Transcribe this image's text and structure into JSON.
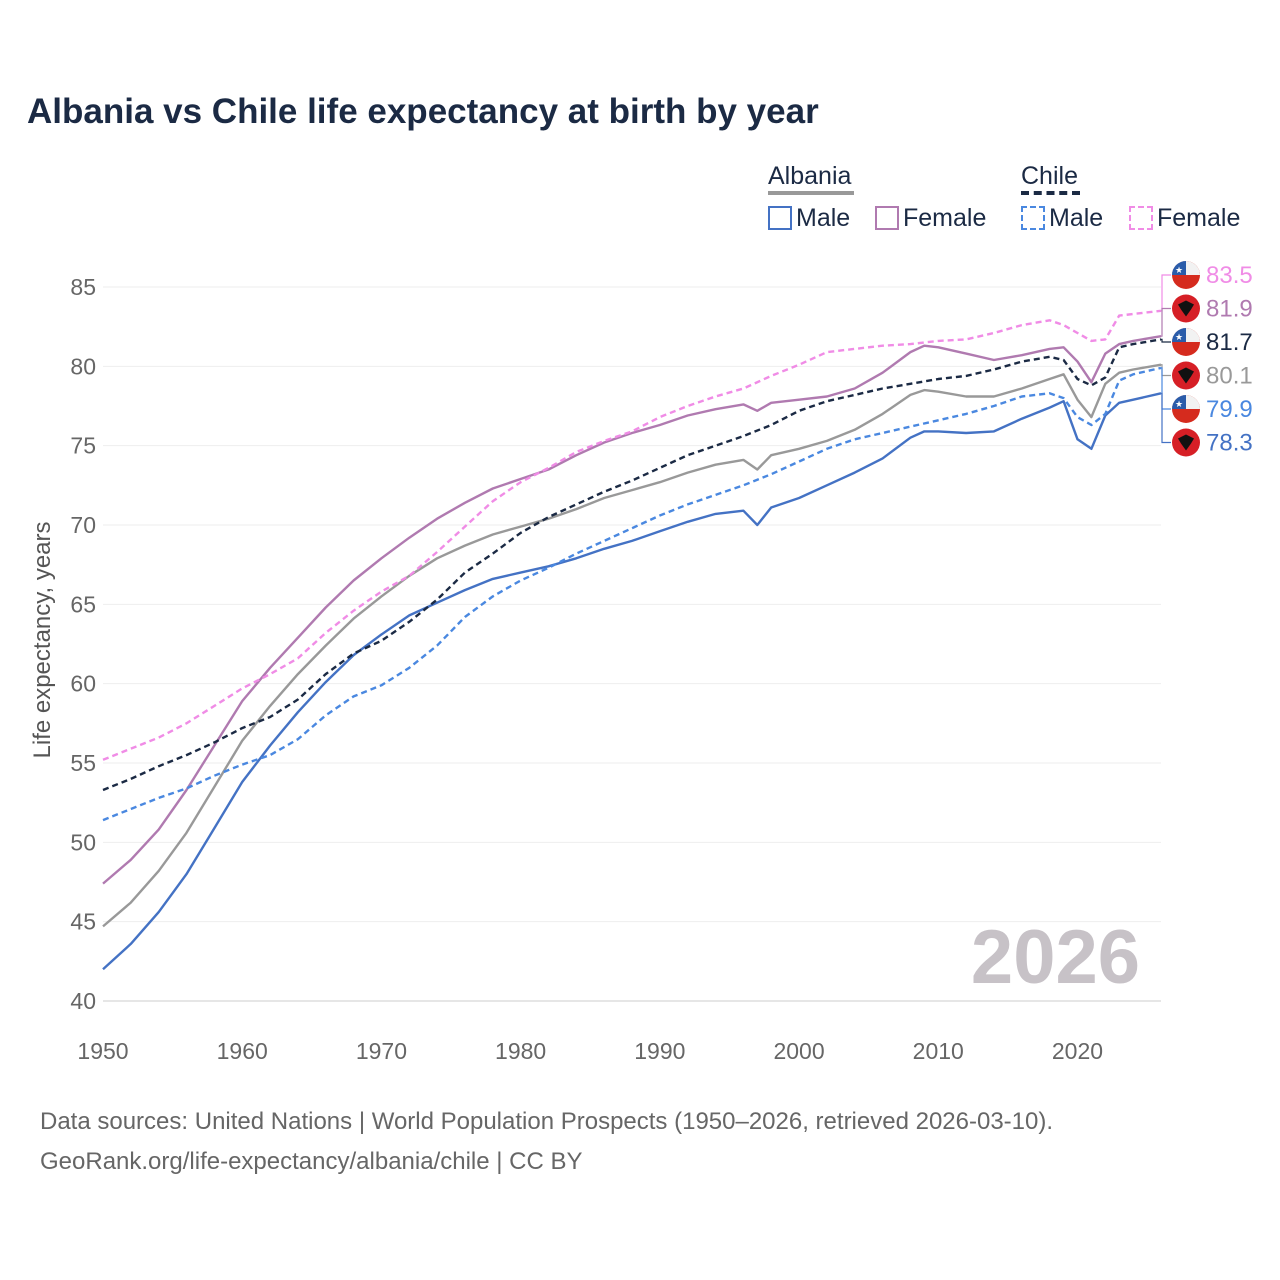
{
  "chart_data": {
    "type": "line",
    "title": "Albania vs Chile life expectancy at birth by year",
    "ylabel": "Life expectancy, years",
    "xlabel": "",
    "xlim": [
      1950,
      2026
    ],
    "ylim": [
      40,
      86
    ],
    "x_ticks": [
      "1950",
      "1960",
      "1970",
      "1980",
      "1990",
      "2000",
      "2010",
      "2020"
    ],
    "y_ticks": [
      "40",
      "45",
      "50",
      "55",
      "60",
      "65",
      "70",
      "75",
      "80",
      "85"
    ],
    "year_watermark": "2026",
    "legend": {
      "groups": [
        {
          "name": "Albania",
          "items": [
            "Male",
            "Female"
          ]
        },
        {
          "name": "Chile",
          "items": [
            "Male",
            "Female"
          ]
        }
      ]
    },
    "series": [
      {
        "name": "Albania Female",
        "country": "Albania",
        "sex": "Female",
        "color": "#b07ab0",
        "dashed": false,
        "end_label": "81.9",
        "points": [
          [
            1950,
            47.4
          ],
          [
            1952,
            48.9
          ],
          [
            1954,
            50.8
          ],
          [
            1956,
            53.3
          ],
          [
            1958,
            56.1
          ],
          [
            1960,
            58.9
          ],
          [
            1962,
            61.0
          ],
          [
            1964,
            62.9
          ],
          [
            1966,
            64.8
          ],
          [
            1968,
            66.5
          ],
          [
            1970,
            67.9
          ],
          [
            1972,
            69.2
          ],
          [
            1974,
            70.4
          ],
          [
            1976,
            71.4
          ],
          [
            1978,
            72.3
          ],
          [
            1980,
            72.9
          ],
          [
            1982,
            73.5
          ],
          [
            1984,
            74.4
          ],
          [
            1986,
            75.2
          ],
          [
            1988,
            75.8
          ],
          [
            1990,
            76.3
          ],
          [
            1992,
            76.9
          ],
          [
            1994,
            77.3
          ],
          [
            1996,
            77.6
          ],
          [
            1997,
            77.2
          ],
          [
            1998,
            77.7
          ],
          [
            2000,
            77.9
          ],
          [
            2002,
            78.1
          ],
          [
            2004,
            78.6
          ],
          [
            2006,
            79.6
          ],
          [
            2008,
            80.9
          ],
          [
            2009,
            81.3
          ],
          [
            2010,
            81.2
          ],
          [
            2012,
            80.8
          ],
          [
            2014,
            80.4
          ],
          [
            2016,
            80.7
          ],
          [
            2018,
            81.1
          ],
          [
            2019,
            81.2
          ],
          [
            2020,
            80.3
          ],
          [
            2021,
            79.0
          ],
          [
            2022,
            80.8
          ],
          [
            2023,
            81.4
          ],
          [
            2024,
            81.6
          ],
          [
            2026,
            81.9
          ]
        ]
      },
      {
        "name": "Albania Total",
        "country": "Albania",
        "sex": "Total",
        "color": "#999999",
        "dashed": false,
        "end_label": "80.1",
        "points": [
          [
            1950,
            44.7
          ],
          [
            1952,
            46.2
          ],
          [
            1954,
            48.2
          ],
          [
            1956,
            50.6
          ],
          [
            1958,
            53.5
          ],
          [
            1960,
            56.4
          ],
          [
            1962,
            58.6
          ],
          [
            1964,
            60.6
          ],
          [
            1966,
            62.4
          ],
          [
            1968,
            64.1
          ],
          [
            1970,
            65.5
          ],
          [
            1972,
            66.8
          ],
          [
            1974,
            67.9
          ],
          [
            1976,
            68.7
          ],
          [
            1978,
            69.4
          ],
          [
            1980,
            69.9
          ],
          [
            1982,
            70.4
          ],
          [
            1984,
            71.0
          ],
          [
            1986,
            71.7
          ],
          [
            1988,
            72.2
          ],
          [
            1990,
            72.7
          ],
          [
            1992,
            73.3
          ],
          [
            1994,
            73.8
          ],
          [
            1996,
            74.1
          ],
          [
            1997,
            73.5
          ],
          [
            1998,
            74.4
          ],
          [
            2000,
            74.8
          ],
          [
            2002,
            75.3
          ],
          [
            2004,
            76.0
          ],
          [
            2006,
            77.0
          ],
          [
            2008,
            78.2
          ],
          [
            2009,
            78.5
          ],
          [
            2010,
            78.4
          ],
          [
            2012,
            78.1
          ],
          [
            2014,
            78.1
          ],
          [
            2016,
            78.6
          ],
          [
            2018,
            79.2
          ],
          [
            2019,
            79.5
          ],
          [
            2020,
            77.9
          ],
          [
            2021,
            76.8
          ],
          [
            2022,
            78.9
          ],
          [
            2023,
            79.6
          ],
          [
            2024,
            79.8
          ],
          [
            2026,
            80.1
          ]
        ]
      },
      {
        "name": "Albania Male",
        "country": "Albania",
        "sex": "Male",
        "color": "#4472c4",
        "dashed": false,
        "end_label": "78.3",
        "points": [
          [
            1950,
            42.0
          ],
          [
            1952,
            43.6
          ],
          [
            1954,
            45.6
          ],
          [
            1956,
            48.0
          ],
          [
            1958,
            50.9
          ],
          [
            1960,
            53.8
          ],
          [
            1962,
            56.1
          ],
          [
            1964,
            58.2
          ],
          [
            1966,
            60.1
          ],
          [
            1968,
            61.8
          ],
          [
            1970,
            63.1
          ],
          [
            1972,
            64.3
          ],
          [
            1974,
            65.1
          ],
          [
            1976,
            65.9
          ],
          [
            1978,
            66.6
          ],
          [
            1980,
            67.0
          ],
          [
            1982,
            67.4
          ],
          [
            1984,
            67.9
          ],
          [
            1986,
            68.5
          ],
          [
            1988,
            69.0
          ],
          [
            1990,
            69.6
          ],
          [
            1992,
            70.2
          ],
          [
            1994,
            70.7
          ],
          [
            1996,
            70.9
          ],
          [
            1997,
            70.0
          ],
          [
            1998,
            71.1
          ],
          [
            2000,
            71.7
          ],
          [
            2002,
            72.5
          ],
          [
            2004,
            73.3
          ],
          [
            2006,
            74.2
          ],
          [
            2008,
            75.5
          ],
          [
            2009,
            75.9
          ],
          [
            2010,
            75.9
          ],
          [
            2012,
            75.8
          ],
          [
            2014,
            75.9
          ],
          [
            2016,
            76.7
          ],
          [
            2018,
            77.4
          ],
          [
            2019,
            77.8
          ],
          [
            2020,
            75.4
          ],
          [
            2021,
            74.8
          ],
          [
            2022,
            76.9
          ],
          [
            2023,
            77.7
          ],
          [
            2024,
            77.9
          ],
          [
            2026,
            78.3
          ]
        ]
      },
      {
        "name": "Chile Female",
        "country": "Chile",
        "sex": "Female",
        "color": "#f08ce6",
        "dashed": true,
        "end_label": "83.5",
        "points": [
          [
            1950,
            55.2
          ],
          [
            1952,
            55.9
          ],
          [
            1954,
            56.6
          ],
          [
            1956,
            57.5
          ],
          [
            1958,
            58.6
          ],
          [
            1960,
            59.7
          ],
          [
            1962,
            60.6
          ],
          [
            1964,
            61.6
          ],
          [
            1966,
            63.2
          ],
          [
            1968,
            64.6
          ],
          [
            1970,
            65.8
          ],
          [
            1972,
            66.8
          ],
          [
            1974,
            68.3
          ],
          [
            1976,
            69.9
          ],
          [
            1978,
            71.5
          ],
          [
            1980,
            72.7
          ],
          [
            1982,
            73.6
          ],
          [
            1984,
            74.6
          ],
          [
            1986,
            75.3
          ],
          [
            1988,
            75.9
          ],
          [
            1990,
            76.8
          ],
          [
            1992,
            77.5
          ],
          [
            1994,
            78.1
          ],
          [
            1996,
            78.6
          ],
          [
            1998,
            79.4
          ],
          [
            2000,
            80.1
          ],
          [
            2002,
            80.9
          ],
          [
            2004,
            81.1
          ],
          [
            2006,
            81.3
          ],
          [
            2008,
            81.4
          ],
          [
            2010,
            81.6
          ],
          [
            2012,
            81.7
          ],
          [
            2014,
            82.1
          ],
          [
            2016,
            82.6
          ],
          [
            2018,
            82.9
          ],
          [
            2019,
            82.6
          ],
          [
            2020,
            82.1
          ],
          [
            2021,
            81.6
          ],
          [
            2022,
            81.7
          ],
          [
            2023,
            83.2
          ],
          [
            2024,
            83.3
          ],
          [
            2026,
            83.5
          ]
        ]
      },
      {
        "name": "Chile Total",
        "country": "Chile",
        "sex": "Total",
        "color": "#1b2a44",
        "dashed": true,
        "end_label": "81.7",
        "points": [
          [
            1950,
            53.3
          ],
          [
            1952,
            54.0
          ],
          [
            1954,
            54.8
          ],
          [
            1956,
            55.5
          ],
          [
            1958,
            56.3
          ],
          [
            1960,
            57.2
          ],
          [
            1962,
            57.9
          ],
          [
            1964,
            59.0
          ],
          [
            1966,
            60.6
          ],
          [
            1968,
            61.9
          ],
          [
            1970,
            62.7
          ],
          [
            1972,
            63.9
          ],
          [
            1974,
            65.3
          ],
          [
            1976,
            67.0
          ],
          [
            1978,
            68.2
          ],
          [
            1980,
            69.5
          ],
          [
            1982,
            70.5
          ],
          [
            1984,
            71.3
          ],
          [
            1986,
            72.1
          ],
          [
            1988,
            72.8
          ],
          [
            1990,
            73.6
          ],
          [
            1992,
            74.4
          ],
          [
            1994,
            75.0
          ],
          [
            1996,
            75.6
          ],
          [
            1998,
            76.3
          ],
          [
            2000,
            77.2
          ],
          [
            2002,
            77.8
          ],
          [
            2004,
            78.2
          ],
          [
            2006,
            78.6
          ],
          [
            2008,
            78.9
          ],
          [
            2010,
            79.2
          ],
          [
            2012,
            79.4
          ],
          [
            2014,
            79.8
          ],
          [
            2016,
            80.3
          ],
          [
            2018,
            80.6
          ],
          [
            2019,
            80.4
          ],
          [
            2020,
            79.2
          ],
          [
            2021,
            78.8
          ],
          [
            2022,
            79.3
          ],
          [
            2023,
            81.2
          ],
          [
            2024,
            81.4
          ],
          [
            2026,
            81.7
          ]
        ]
      },
      {
        "name": "Chile Male",
        "country": "Chile",
        "sex": "Male",
        "color": "#4a88e0",
        "dashed": true,
        "end_label": "79.9",
        "points": [
          [
            1950,
            51.4
          ],
          [
            1952,
            52.1
          ],
          [
            1954,
            52.8
          ],
          [
            1956,
            53.4
          ],
          [
            1958,
            54.2
          ],
          [
            1960,
            54.9
          ],
          [
            1962,
            55.5
          ],
          [
            1964,
            56.5
          ],
          [
            1966,
            58.0
          ],
          [
            1968,
            59.2
          ],
          [
            1970,
            59.9
          ],
          [
            1972,
            61.0
          ],
          [
            1974,
            62.4
          ],
          [
            1976,
            64.2
          ],
          [
            1978,
            65.5
          ],
          [
            1980,
            66.5
          ],
          [
            1982,
            67.3
          ],
          [
            1984,
            68.2
          ],
          [
            1986,
            69.0
          ],
          [
            1988,
            69.8
          ],
          [
            1990,
            70.6
          ],
          [
            1992,
            71.3
          ],
          [
            1994,
            71.9
          ],
          [
            1996,
            72.5
          ],
          [
            1998,
            73.2
          ],
          [
            2000,
            74.0
          ],
          [
            2002,
            74.8
          ],
          [
            2004,
            75.4
          ],
          [
            2006,
            75.8
          ],
          [
            2008,
            76.2
          ],
          [
            2010,
            76.6
          ],
          [
            2012,
            77.0
          ],
          [
            2014,
            77.5
          ],
          [
            2016,
            78.1
          ],
          [
            2018,
            78.3
          ],
          [
            2019,
            78.0
          ],
          [
            2020,
            76.8
          ],
          [
            2021,
            76.3
          ],
          [
            2022,
            77.0
          ],
          [
            2023,
            79.1
          ],
          [
            2024,
            79.5
          ],
          [
            2026,
            79.9
          ]
        ]
      }
    ]
  },
  "footer": {
    "line1": "Data sources: United Nations | World Population Prospects (1950–2026, retrieved 2026-03-10).",
    "line2": "GeoRank.org/life-expectancy/albania/chile | CC BY"
  },
  "icons": {
    "albania_flag": "albania-flag-icon",
    "chile_flag": "chile-flag-icon"
  }
}
